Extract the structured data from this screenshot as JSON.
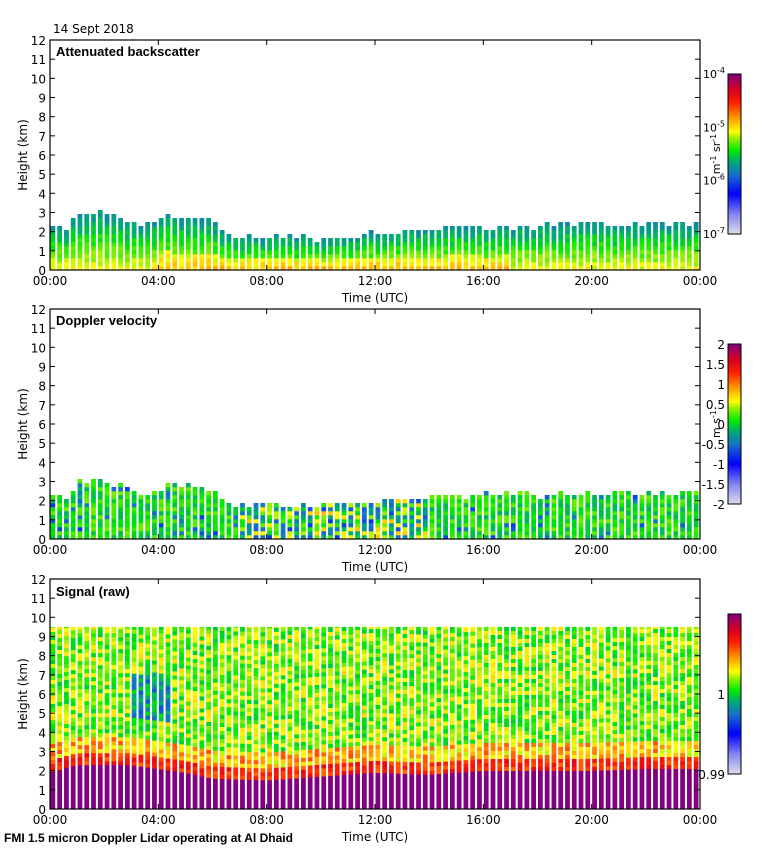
{
  "header": {
    "date": "14 Sept 2018"
  },
  "footer": {
    "caption": "FMI 1.5 micron Doppler Lidar operating at Al Dhaid"
  },
  "chart_data": [
    {
      "type": "heatmap",
      "title": "Attenuated backscatter",
      "xlabel": "Time (UTC)",
      "ylabel": "Height (km)",
      "x_ticks": [
        "00:00",
        "04:00",
        "08:00",
        "12:00",
        "16:00",
        "20:00",
        "00:00"
      ],
      "y_ticks": [
        "0",
        "1",
        "2",
        "3",
        "4",
        "5",
        "6",
        "7",
        "8",
        "9",
        "10",
        "11",
        "12"
      ],
      "xlim_hours": [
        0,
        24
      ],
      "ylim": [
        0,
        12
      ],
      "colorbar": {
        "unit": "m-1 sr-1",
        "scale": "log",
        "range": [
          1e-07,
          0.0001
        ],
        "tick_labels": [
          {
            "base": "10",
            "exp": "-4",
            "value": -4
          },
          {
            "base": "10",
            "exp": "-5",
            "value": -5
          },
          {
            "base": "10",
            "exp": "-6",
            "value": -6
          },
          {
            "base": "10",
            "exp": "-7",
            "value": -7
          }
        ]
      },
      "signal_top_km": {
        "hours": [
          0,
          0.7,
          1,
          2,
          3,
          3.5,
          4,
          4.5,
          5,
          6,
          6.5,
          7,
          8,
          10,
          12,
          14,
          16,
          18,
          20,
          22,
          24
        ],
        "km": [
          2.1,
          2.1,
          2.9,
          2.9,
          2.5,
          2.2,
          2.5,
          2.9,
          2.6,
          2.5,
          1.7,
          1.7,
          1.6,
          1.6,
          1.8,
          2.0,
          2.2,
          2.2,
          2.3,
          2.3,
          2.2
        ]
      },
      "dominant_values": "green-yellow near surface (~1e-5.5), blue-green near top (~1e-6)"
    },
    {
      "type": "heatmap",
      "title": "Doppler velocity",
      "xlabel": "Time (UTC)",
      "ylabel": "Height (km)",
      "x_ticks": [
        "00:00",
        "04:00",
        "08:00",
        "12:00",
        "16:00",
        "20:00",
        "00:00"
      ],
      "y_ticks": [
        "0",
        "1",
        "2",
        "3",
        "4",
        "5",
        "6",
        "7",
        "8",
        "9",
        "10",
        "11",
        "12"
      ],
      "xlim_hours": [
        0,
        24
      ],
      "ylim": [
        0,
        12
      ],
      "colorbar": {
        "unit": "m s-1",
        "scale": "linear",
        "range": [
          -2,
          2
        ],
        "tick_labels": [
          "2",
          "1.5",
          "1",
          "0.5",
          "0",
          "-0.5",
          "-1",
          "-1.5",
          "-2"
        ]
      },
      "signal_top_km": {
        "hours": [
          0,
          0.7,
          1,
          2,
          3,
          3.5,
          4,
          4.5,
          5,
          6,
          6.5,
          7,
          8,
          10,
          12,
          14,
          16,
          18,
          20,
          22,
          24
        ],
        "km": [
          2.1,
          2.1,
          2.9,
          2.9,
          2.5,
          2.2,
          2.5,
          2.9,
          2.6,
          2.5,
          1.7,
          1.7,
          1.6,
          1.6,
          1.8,
          2.0,
          2.2,
          2.2,
          2.3,
          2.3,
          2.2
        ]
      },
      "dominant_values": "mostly near 0 (green), mixed -1 to +1 between 07:00 and 14:00"
    },
    {
      "type": "heatmap",
      "title": "Signal (raw)",
      "xlabel": "Time (UTC)",
      "ylabel": "Height (km)",
      "x_ticks": [
        "00:00",
        "04:00",
        "08:00",
        "12:00",
        "16:00",
        "20:00",
        "00:00"
      ],
      "y_ticks": [
        "0",
        "1",
        "2",
        "3",
        "4",
        "5",
        "6",
        "7",
        "8",
        "9",
        "10",
        "11",
        "12"
      ],
      "xlim_hours": [
        0,
        24
      ],
      "ylim": [
        0,
        12
      ],
      "data_top_km": 9.5,
      "colorbar": {
        "unit": "",
        "scale": "linear",
        "range": [
          0.99,
          1.01
        ],
        "tick_labels": [
          "1",
          "0.99"
        ]
      },
      "saturated_top_km": {
        "hours": [
          0,
          1,
          2,
          3,
          4,
          5,
          6,
          8,
          10,
          12,
          14,
          16,
          18,
          20,
          22,
          24
        ],
        "km": [
          1.9,
          2.3,
          2.3,
          2.3,
          2.1,
          1.9,
          1.6,
          1.5,
          1.7,
          1.9,
          1.8,
          2.0,
          2.0,
          2.0,
          2.1,
          2.1
        ]
      }
    }
  ]
}
